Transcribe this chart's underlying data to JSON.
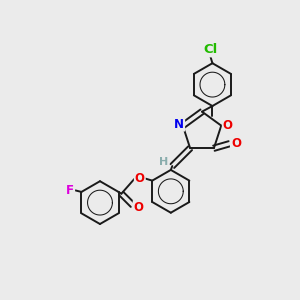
{
  "bg_color": "#ebebeb",
  "bond_color": "#1a1a1a",
  "atom_colors": {
    "O": "#ee0000",
    "N": "#0000ee",
    "Cl": "#22bb00",
    "F": "#dd00dd",
    "H": "#8aadad"
  },
  "font_size": 8.5,
  "lw": 1.4,
  "inner_lw": 0.75,
  "ring_r": 0.72
}
